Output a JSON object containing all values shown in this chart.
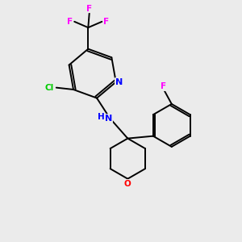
{
  "bg_color": "#ebebeb",
  "bond_color": "#000000",
  "atom_colors": {
    "N": "#0000ff",
    "O": "#ff0000",
    "F": "#ff00ff",
    "Cl": "#00cc00",
    "C": "#000000",
    "H": "#000000"
  },
  "font_size": 7.5,
  "lw": 1.4
}
